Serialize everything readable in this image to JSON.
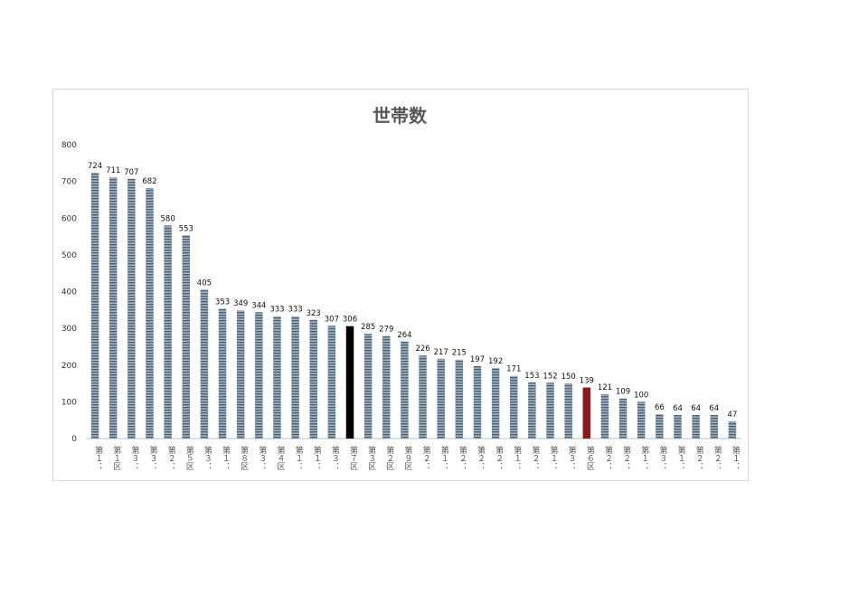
{
  "chart_data": {
    "type": "bar",
    "title": "世帯数",
    "xlabel": "",
    "ylabel": "",
    "ylim": [
      0,
      800
    ],
    "yticks": [
      0,
      100,
      200,
      300,
      400,
      500,
      600,
      700,
      800
    ],
    "grid": false,
    "legend": "none",
    "categories": [
      "第１：",
      "第１区",
      "第３：",
      "第３：",
      "第２：",
      "第５区",
      "第３：",
      "第１：",
      "第８区",
      "第３：",
      "第４区",
      "第１：",
      "第１：",
      "第３：",
      "第７区",
      "第３区",
      "第２区",
      "第９区",
      "第２：",
      "第１：",
      "第２：",
      "第２：",
      "第２：",
      "第１：",
      "第２：",
      "第１：",
      "第３：",
      "第６区",
      "第２：",
      "第２：",
      "第１：",
      "第３：",
      "第１：",
      "第２：",
      "第２：",
      "第１："
    ],
    "values": [
      724,
      711,
      707,
      682,
      580,
      553,
      405,
      353,
      349,
      344,
      333,
      333,
      323,
      307,
      306,
      285,
      279,
      264,
      226,
      217,
      215,
      197,
      192,
      171,
      153,
      152,
      150,
      139,
      121,
      109,
      100,
      66,
      64,
      64,
      64,
      47
    ],
    "highlights": {
      "第７区": "#000000",
      "第６区": "#8b1a1a"
    },
    "default_bar_color": "#4a6378"
  }
}
